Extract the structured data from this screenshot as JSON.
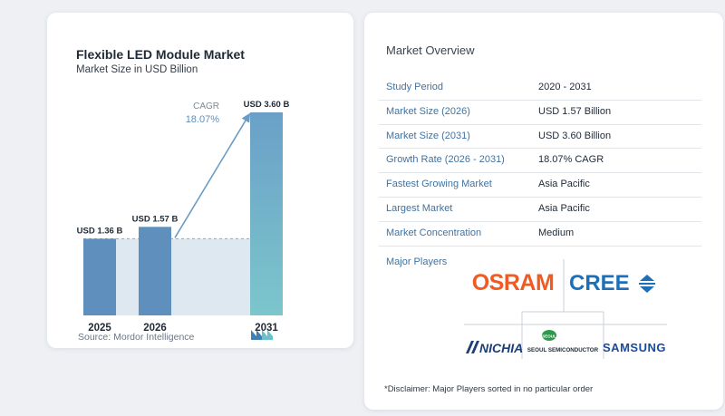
{
  "chart": {
    "title": "Flexible LED Module Market",
    "subtitle": "Market Size in USD Billion",
    "source": "Source: Mordor Intelligence",
    "cagr_label": "CAGR",
    "cagr_value": "18.07%"
  },
  "chart_data": {
    "type": "bar",
    "title": "Flexible LED Module Market",
    "subtitle": "Market Size in USD Billion",
    "categories": [
      "2025",
      "2026",
      "2031"
    ],
    "values": [
      1.36,
      1.57,
      3.6
    ],
    "data_labels": [
      "USD 1.36 B",
      "USD 1.57 B",
      "USD 3.60 B"
    ],
    "ylim": [
      0,
      3.6
    ],
    "grid": false,
    "annotation": "CAGR 18.07%",
    "colors": {
      "bar_start": "#5f8fbd",
      "bar_last_top": "#6aa0c8",
      "bar_last_bottom": "#7cc6cc",
      "shade": "#dde8f1",
      "arrow": "#6a9bc4"
    }
  },
  "overview": {
    "title": "Market Overview",
    "rows": [
      {
        "label": "Study Period",
        "value": "2020 - 2031"
      },
      {
        "label": "Market Size (2026)",
        "value": "USD 1.57 Billion"
      },
      {
        "label": "Market Size (2031)",
        "value": "USD 3.60 Billion"
      },
      {
        "label": "Growth Rate (2026 - 2031)",
        "value": "18.07% CAGR"
      },
      {
        "label": "Fastest Growing Market",
        "value": "Asia Pacific"
      },
      {
        "label": "Largest Market",
        "value": "Asia Pacific"
      },
      {
        "label": "Market Concentration",
        "value": "Medium"
      }
    ],
    "players_label": "Major Players",
    "players": [
      "OSRAM",
      "CREE",
      "NICHIA",
      "SEOUL SEMICONDUCTOR",
      "SAMSUNG"
    ],
    "seoul_badge": "SEOUL",
    "disclaimer": "*Disclaimer: Major Players sorted in no particular order"
  }
}
